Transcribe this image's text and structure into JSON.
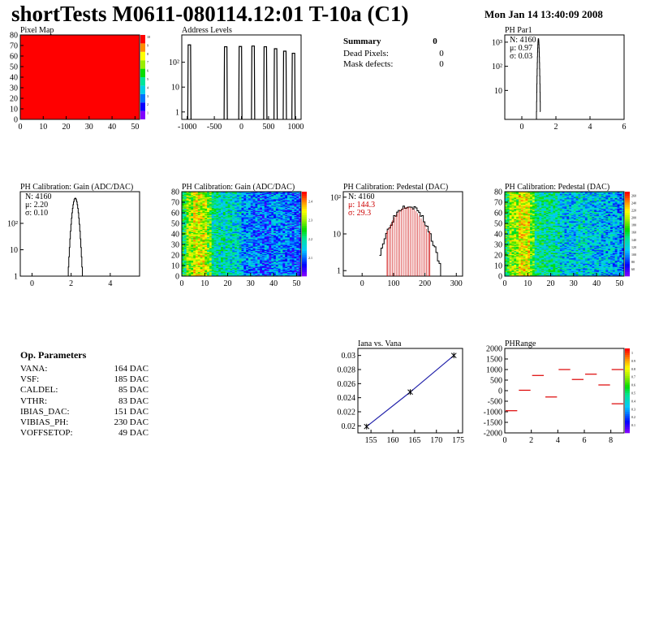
{
  "header": {
    "title": "shortTests M0611-080114.12:01 T-10a (C1)",
    "date": "Mon Jan 14 13:40:09 2008"
  },
  "summary": {
    "title": "Summary",
    "title_value": "0",
    "rows": [
      {
        "label": "Dead Pixels:",
        "value": "0"
      },
      {
        "label": "Mask defects:",
        "value": "0"
      }
    ]
  },
  "op_params": {
    "title": "Op. Parameters",
    "rows": [
      {
        "name": "VANA:",
        "value": "164 DAC"
      },
      {
        "name": "VSF:",
        "value": "185 DAC"
      },
      {
        "name": "CALDEL:",
        "value": "85 DAC"
      },
      {
        "name": "VTHR:",
        "value": "83 DAC"
      },
      {
        "name": "IBIAS_DAC:",
        "value": "151 DAC"
      },
      {
        "name": "VIBIAS_PH:",
        "value": "230 DAC"
      },
      {
        "name": "VOFFSETOP:",
        "value": "49 DAC"
      }
    ]
  },
  "chart_data": [
    {
      "id": "pixelmap",
      "type": "heatmap",
      "title": "Pixel Map",
      "xlim": [
        0,
        52
      ],
      "ylim": [
        0,
        80
      ],
      "xticks": [
        "0",
        "10",
        "20",
        "30",
        "40",
        "50"
      ],
      "yticks": [
        "0",
        "10",
        "20",
        "30",
        "40",
        "50",
        "60",
        "70",
        "80"
      ],
      "fill": "uniform",
      "z": 10,
      "zticks": [
        "1",
        "2",
        "3",
        "4",
        "5",
        "6",
        "7",
        "8",
        "9",
        "10"
      ]
    },
    {
      "id": "address",
      "type": "bar",
      "title": "Address Levels",
      "xlim": [
        -1100,
        1100
      ],
      "yscale": "log",
      "xticks": [
        "-1000",
        "-500",
        "0",
        "500",
        "1000"
      ],
      "yticks": [
        "1",
        "10",
        "10²"
      ],
      "peaks": [
        {
          "x": -960,
          "y": 500
        },
        {
          "x": -290,
          "y": 420
        },
        {
          "x": -20,
          "y": 430
        },
        {
          "x": 215,
          "y": 450
        },
        {
          "x": 440,
          "y": 420
        },
        {
          "x": 630,
          "y": 350
        },
        {
          "x": 800,
          "y": 280
        },
        {
          "x": 960,
          "y": 230
        }
      ]
    },
    {
      "id": "phpar1",
      "type": "line",
      "title": "PH Par1",
      "xlim": [
        -1,
        6
      ],
      "yscale": "log",
      "xticks": [
        "0",
        "2",
        "4",
        "6"
      ],
      "yticks": [
        "10",
        "10²",
        "10³"
      ],
      "stats": [
        "N: 4160",
        "μ: 0.97",
        "σ: 0.03"
      ],
      "mean": 0.97,
      "sigma": 0.03,
      "peak": 1400
    },
    {
      "id": "gain1d",
      "type": "line",
      "title": "PH Calibration: Gain (ADC/DAC)",
      "xlim": [
        -0.6,
        5.5
      ],
      "yscale": "log",
      "xticks": [
        "0",
        "2",
        "4"
      ],
      "yticks": [
        "1",
        "10",
        "10²"
      ],
      "stats": [
        "N: 4160",
        "μ: 2.20",
        "σ: 0.10"
      ],
      "mean": 2.2,
      "sigma": 0.1,
      "peak": 900
    },
    {
      "id": "gainmap",
      "type": "heatmap",
      "title": "PH Calibration: Gain (ADC/DAC)",
      "xlim": [
        0,
        52
      ],
      "ylim": [
        0,
        80
      ],
      "xticks": [
        "0",
        "10",
        "20",
        "30",
        "40",
        "50"
      ],
      "yticks": [
        "0",
        "10",
        "20",
        "30",
        "40",
        "50",
        "60",
        "70",
        "80"
      ],
      "zticks": [
        "2.1",
        "2.2",
        "2.3",
        "2.4"
      ]
    },
    {
      "id": "pedestal",
      "type": "line",
      "title": "PH Calibration: Pedestal (DAC)",
      "xlim": [
        -60,
        320
      ],
      "yscale": "log",
      "xticks": [
        "0",
        "100",
        "200",
        "300"
      ],
      "yticks": [
        "1",
        "10",
        "10²"
      ],
      "stats": [
        "N: 4160",
        "μ: 144.3",
        "σ: 29.3"
      ],
      "mean": 144.3,
      "sigma": 29.3,
      "peak": 60,
      "fit_range": [
        80,
        215
      ]
    },
    {
      "id": "pedmap",
      "type": "heatmap",
      "title": "PH Calibration: Pedestal (DAC)",
      "xlim": [
        0,
        52
      ],
      "ylim": [
        0,
        80
      ],
      "xticks": [
        "0",
        "10",
        "20",
        "30",
        "40",
        "50"
      ],
      "yticks": [
        "0",
        "10",
        "20",
        "30",
        "40",
        "50",
        "60",
        "70",
        "80"
      ],
      "zticks": [
        "60",
        "80",
        "100",
        "120",
        "140",
        "160",
        "180",
        "200",
        "220",
        "240",
        "260"
      ]
    },
    {
      "id": "iana",
      "type": "scatter",
      "title": "Iana vs. Vana",
      "xlim": [
        152,
        176
      ],
      "ylim": [
        0.019,
        0.031
      ],
      "xticks": [
        "155",
        "160",
        "165",
        "170",
        "175"
      ],
      "yticks": [
        "0.02",
        "0.022",
        "0.024",
        "0.026",
        "0.028",
        "0.03"
      ],
      "points": [
        {
          "x": 154,
          "y": 0.0199
        },
        {
          "x": 164,
          "y": 0.0248
        },
        {
          "x": 174,
          "y": 0.03
        }
      ]
    },
    {
      "id": "phrange",
      "type": "scatter",
      "title": "PHRange",
      "xlim": [
        0,
        9
      ],
      "ylim": [
        -2000,
        2000
      ],
      "xticks": [
        "0",
        "2",
        "4",
        "6",
        "8"
      ],
      "yticks": [
        "-2000",
        "-1500",
        "-1000",
        "-500",
        "0",
        "500",
        "1000",
        "1500",
        "2000"
      ],
      "zticks": [
        "0.1",
        "0.2",
        "0.3",
        "0.4",
        "0.5",
        "0.6",
        "0.7",
        "0.8",
        "0.9",
        "1"
      ],
      "segments": [
        {
          "x": 0,
          "y": -950
        },
        {
          "x": 1,
          "y": 20
        },
        {
          "x": 2,
          "y": 720
        },
        {
          "x": 3,
          "y": -300
        },
        {
          "x": 4,
          "y": 1000
        },
        {
          "x": 5,
          "y": 530
        },
        {
          "x": 6,
          "y": 780
        },
        {
          "x": 7,
          "y": 270
        },
        {
          "x": 8,
          "y": 1000
        },
        {
          "x": 8,
          "y": -620
        }
      ]
    }
  ]
}
